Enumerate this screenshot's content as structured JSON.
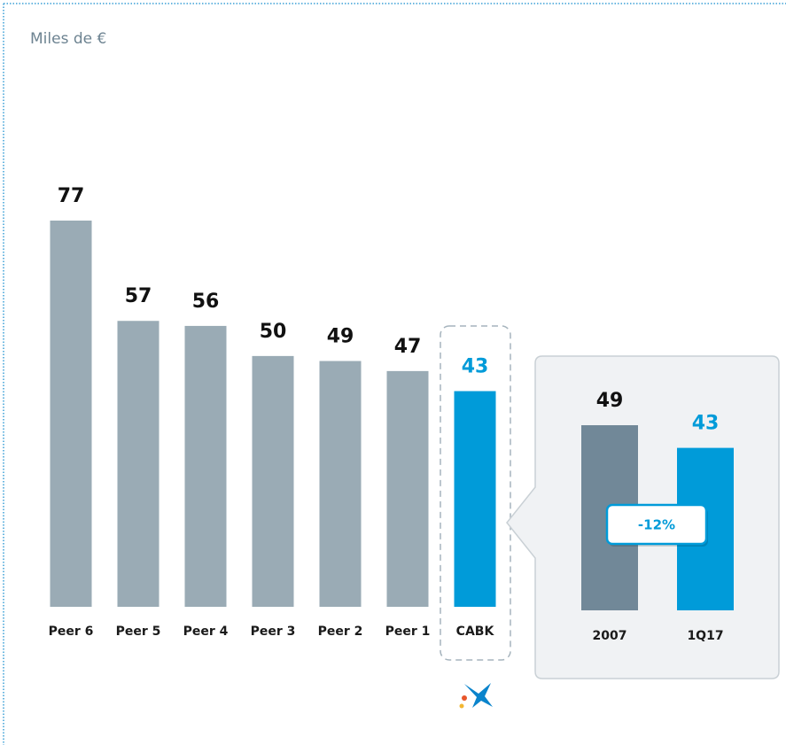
{
  "chart_data": [
    {
      "type": "bar",
      "subtitle": "Miles de €",
      "categories": [
        "Peer 6",
        "Peer 5",
        "Peer 4",
        "Peer 3",
        "Peer 2",
        "Peer 1",
        "CABK"
      ],
      "values": [
        77,
        57,
        56,
        50,
        49,
        47,
        43
      ],
      "colors": [
        "#9aabb5",
        "#9aabb5",
        "#9aabb5",
        "#9aabb5",
        "#9aabb5",
        "#9aabb5",
        "#009bd9"
      ],
      "value_label_colors": [
        "#111111",
        "#111111",
        "#111111",
        "#111111",
        "#111111",
        "#111111",
        "#009bd9"
      ]
    },
    {
      "type": "bar",
      "categories": [
        "2007",
        "1Q17"
      ],
      "values": [
        49,
        43
      ],
      "colors": [
        "#718898",
        "#009bd9"
      ],
      "value_label_colors": [
        "#111111",
        "#009bd9"
      ],
      "annotation": "-12%"
    }
  ]
}
